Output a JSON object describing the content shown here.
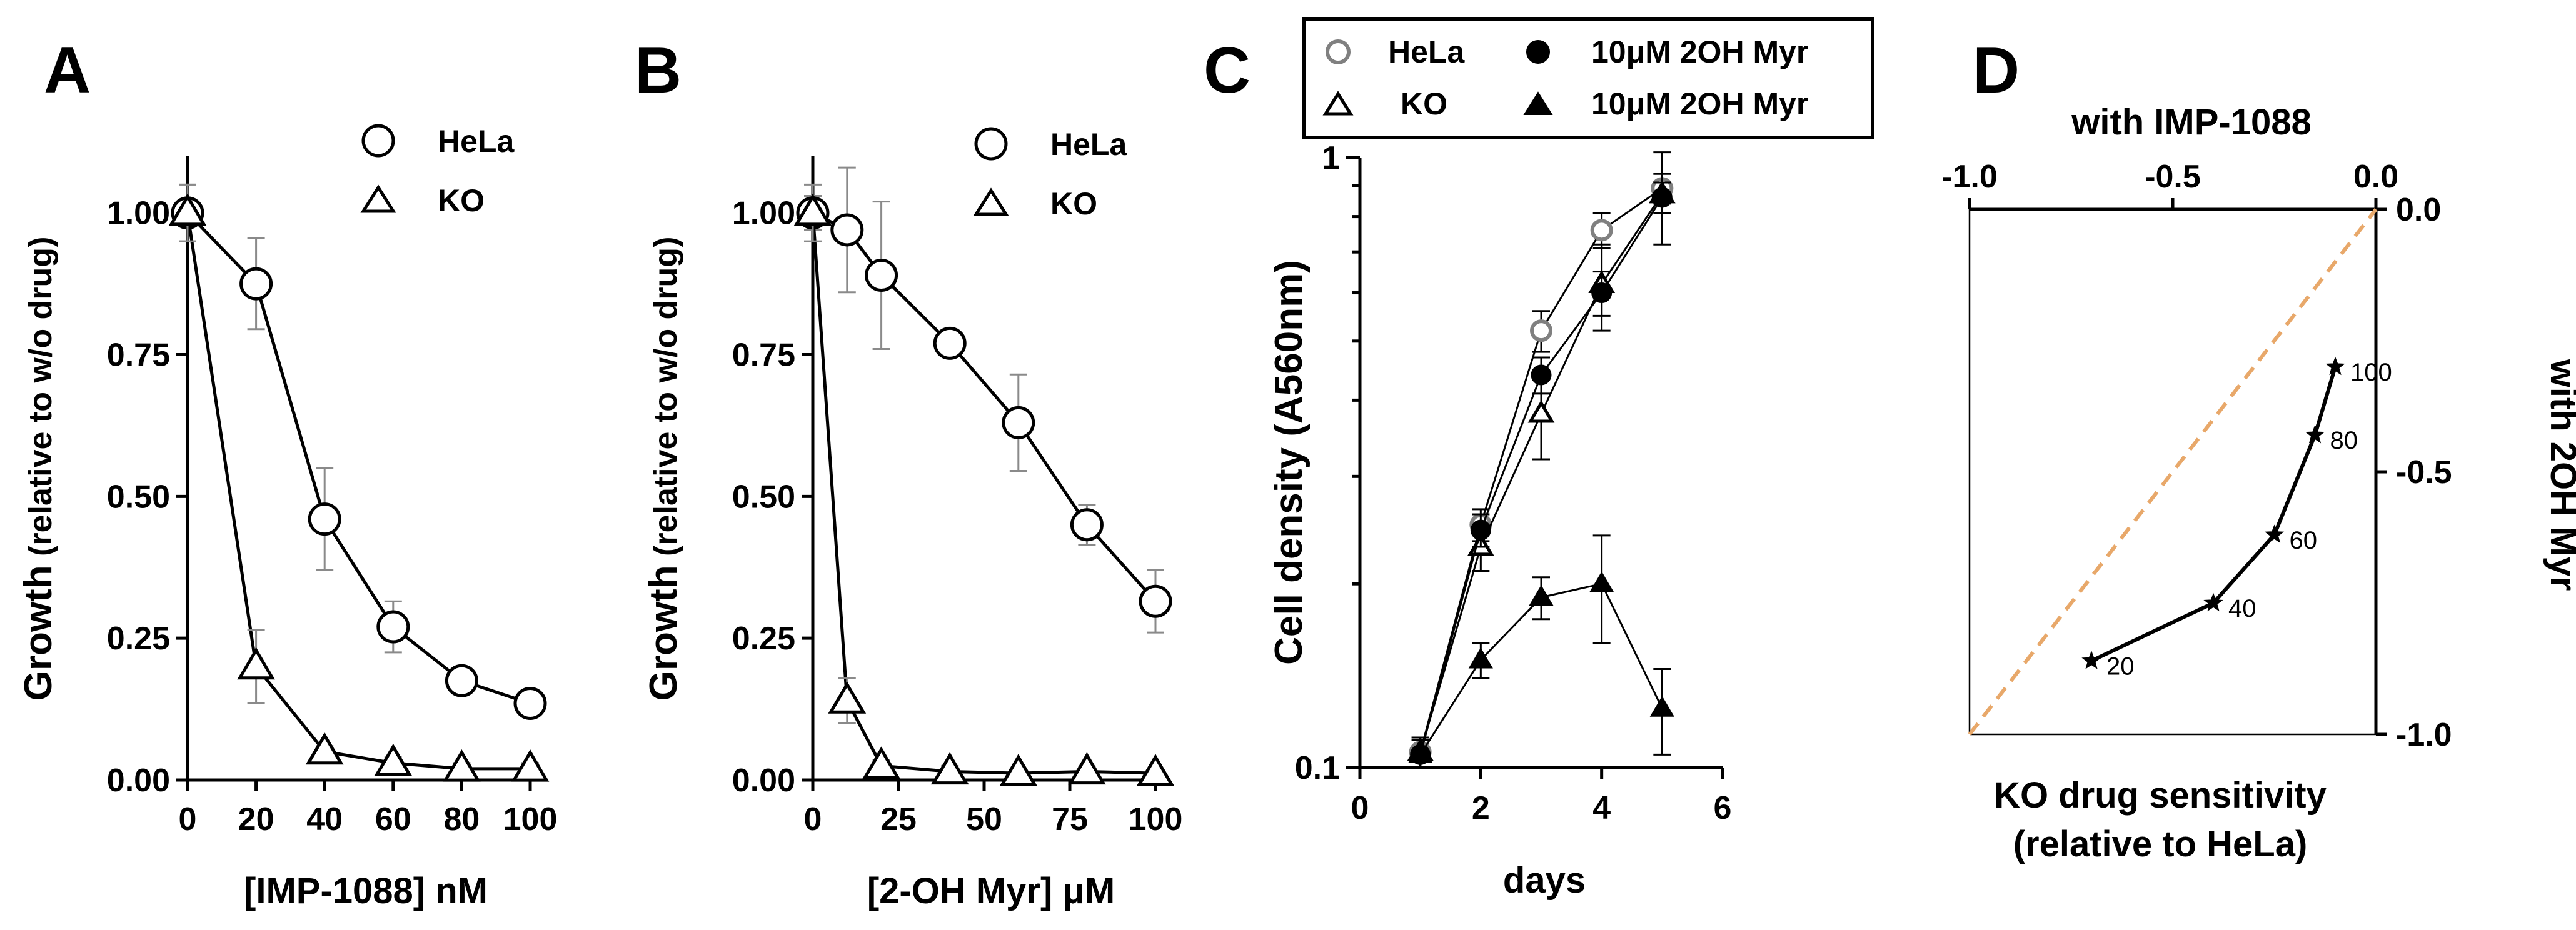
{
  "chart_data": [
    {
      "panel": "A",
      "type": "line",
      "xlabel": "[IMP-1088] nM",
      "ylabel_main": "Growth",
      "ylabel_sub": " (relative to w/o drug)",
      "xlim": [
        0,
        100
      ],
      "ylim": [
        0,
        1.1
      ],
      "xticks": [
        "0",
        "20",
        "40",
        "60",
        "80",
        "100"
      ],
      "yticks": [
        "0.00",
        "0.25",
        "0.50",
        "0.75",
        "1.00"
      ],
      "legend": [
        "HeLa",
        "KO"
      ],
      "series": [
        {
          "name": "HeLa",
          "marker": "circle",
          "x": [
            0,
            20,
            40,
            60,
            80,
            100
          ],
          "y": [
            1.0,
            0.875,
            0.46,
            0.27,
            0.175,
            0.135
          ],
          "err": [
            0.05,
            0.08,
            0.09,
            0.045,
            0.02,
            0.015
          ]
        },
        {
          "name": "KO",
          "marker": "triangle",
          "x": [
            0,
            20,
            40,
            60,
            80,
            100
          ],
          "y": [
            1.0,
            0.2,
            0.05,
            0.03,
            0.02,
            0.02
          ],
          "err": [
            0.05,
            0.065,
            0.01,
            0.01,
            0.01,
            0.01
          ]
        }
      ]
    },
    {
      "panel": "B",
      "type": "line",
      "xlabel": "[2-OH Myr] μM",
      "ylabel_main": "Growth",
      "ylabel_sub": " (relative to w/o drug)",
      "xlim": [
        0,
        100
      ],
      "ylim": [
        0,
        1.1
      ],
      "xticks": [
        "0",
        "25",
        "50",
        "75",
        "100"
      ],
      "yticks": [
        "0.00",
        "0.25",
        "0.50",
        "0.75",
        "1.00"
      ],
      "legend": [
        "HeLa",
        "KO"
      ],
      "series": [
        {
          "name": "HeLa",
          "marker": "circle",
          "x": [
            0,
            10,
            20,
            40,
            60,
            80,
            100
          ],
          "y": [
            1.0,
            0.97,
            0.89,
            0.77,
            0.63,
            0.45,
            0.315
          ],
          "err": [
            0.03,
            0.11,
            0.13,
            0.02,
            0.085,
            0.035,
            0.055
          ]
        },
        {
          "name": "KO",
          "marker": "triangle",
          "x": [
            0,
            10,
            20,
            40,
            60,
            80,
            100
          ],
          "y": [
            1.0,
            0.14,
            0.025,
            0.015,
            0.012,
            0.015,
            0.012
          ],
          "err": [
            0.05,
            0.04,
            0.01,
            0.01,
            0.008,
            0.008,
            0.008
          ]
        }
      ]
    },
    {
      "panel": "C",
      "type": "line",
      "xlabel": "days",
      "ylabel": "Cell density (A560nm)",
      "yscale": "log",
      "xlim": [
        0,
        6
      ],
      "ylim": [
        0.1,
        1
      ],
      "xticks": [
        "0",
        "2",
        "4",
        "6"
      ],
      "yticks": [
        "0.1",
        "1"
      ],
      "legend": [
        "HeLa",
        "10μM 2OH Myr",
        "KO",
        "10μM 2OH Myr"
      ],
      "series": [
        {
          "name": "HeLa",
          "marker": "open-circle-gray",
          "x": [
            1,
            2,
            3,
            4,
            5
          ],
          "y": [
            0.106,
            0.25,
            0.52,
            0.76,
            0.89
          ],
          "err": [
            0.006,
            0.015,
            0.04,
            0.05,
            0.05
          ]
        },
        {
          "name": "KO",
          "marker": "open-triangle",
          "x": [
            1,
            2,
            3,
            4,
            5
          ],
          "y": [
            0.106,
            0.23,
            0.38,
            0.62,
            0.87
          ],
          "err": [
            0.006,
            0.02,
            0.06,
            0.1,
            0.15
          ]
        },
        {
          "name": "HeLa 10μM 2OH Myr",
          "marker": "filled-circle",
          "x": [
            1,
            2,
            3,
            4,
            5
          ],
          "y": [
            0.105,
            0.245,
            0.44,
            0.6,
            0.86
          ],
          "err": [
            0.006,
            0.015,
            0.03,
            0.05,
            0.05
          ]
        },
        {
          "name": "KO 10μM 2OH Myr",
          "marker": "filled-triangle",
          "x": [
            1,
            2,
            3,
            4,
            5
          ],
          "y": [
            0.105,
            0.15,
            0.19,
            0.2,
            0.125
          ],
          "err": [
            0.006,
            0.01,
            0.015,
            0.04,
            0.02
          ]
        }
      ]
    },
    {
      "panel": "D",
      "type": "line",
      "xlabel_line1": "KO drug sensitivity",
      "xlabel_line2": "(relative to HeLa)",
      "top_label": "with IMP-1088",
      "right_label": "with 2OH Myr",
      "xlim": [
        -1.0,
        0.0
      ],
      "ylim": [
        -1.0,
        0.0
      ],
      "xticks": [
        "-1.0",
        "-0.5",
        "0.0"
      ],
      "yticks": [
        "0.0",
        "-0.5",
        "-1.0"
      ],
      "diagonal_color": "#e8a86a",
      "series": [
        {
          "name": "KO drug sensitivity",
          "marker": "star",
          "x": [
            -0.7,
            -0.4,
            -0.25,
            -0.15,
            -0.1
          ],
          "y": [
            -0.86,
            -0.75,
            -0.62,
            -0.43,
            -0.3
          ],
          "labels": [
            "20",
            "40",
            "60",
            "80",
            "100"
          ]
        }
      ]
    }
  ]
}
